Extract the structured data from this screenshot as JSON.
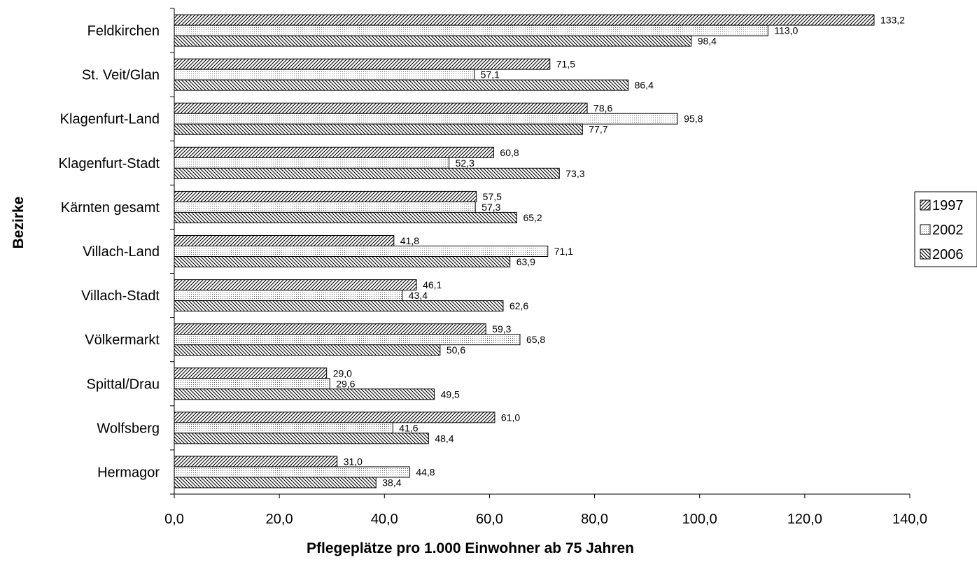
{
  "chart_data": {
    "type": "bar",
    "orientation": "horizontal",
    "title": "",
    "xlabel": "Pflegeplätze pro 1.000 Einwohner ab 75 Jahren",
    "ylabel": "Bezirke",
    "xlim": [
      0,
      140
    ],
    "x_ticks": [
      "0,0",
      "20,0",
      "40,0",
      "60,0",
      "80,0",
      "100,0",
      "120,0",
      "140,0"
    ],
    "grid": false,
    "legend_position": "right",
    "categories": [
      "Feldkirchen",
      "St. Veit/Glan",
      "Klagenfurt-Land",
      "Klagenfurt-Stadt",
      "Kärnten gesamt",
      "Villach-Land",
      "Villach-Stadt",
      "Völkermarkt",
      "Spittal/Drau",
      "Wolfsberg",
      "Hermagor"
    ],
    "series": [
      {
        "name": "1997",
        "pattern": "forward-hatch",
        "values": [
          133.2,
          71.5,
          78.6,
          60.8,
          57.5,
          41.8,
          46.1,
          59.3,
          29.0,
          61.0,
          31.0
        ],
        "labels": [
          "133,2",
          "71,5",
          "78,6",
          "60,8",
          "57,5",
          "41,8",
          "46,1",
          "59,3",
          "29,0",
          "61,0",
          "31,0"
        ]
      },
      {
        "name": "2002",
        "pattern": "dots",
        "values": [
          113.0,
          57.1,
          95.8,
          52.3,
          57.3,
          71.1,
          43.4,
          65.8,
          29.6,
          41.6,
          44.8
        ],
        "labels": [
          "113,0",
          "57,1",
          "95,8",
          "52,3",
          "57,3",
          "71,1",
          "43,4",
          "65,8",
          "29,6",
          "41,6",
          "44,8"
        ]
      },
      {
        "name": "2006",
        "pattern": "back-hatch",
        "values": [
          98.4,
          86.4,
          77.7,
          73.3,
          65.2,
          63.9,
          62.6,
          50.6,
          49.5,
          48.4,
          38.4
        ],
        "labels": [
          "98,4",
          "86,4",
          "77,7",
          "73,3",
          "65,2",
          "63,9",
          "62,6",
          "50,6",
          "49,5",
          "48,4",
          "38,4"
        ]
      }
    ]
  }
}
